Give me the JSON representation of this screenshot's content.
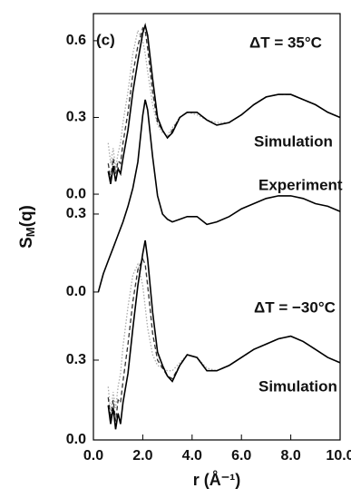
{
  "chart_data": [
    {
      "type": "line",
      "ylabel": {
        "main": "S",
        "sub": "M",
        "rest": "(q)"
      },
      "xlabel": "r (Å⁻¹)",
      "xlim": [
        0,
        10
      ],
      "xticks": [
        {
          "value": 0,
          "label": "0.0"
        },
        {
          "value": 2,
          "label": "2.0"
        },
        {
          "value": 4,
          "label": "4.0"
        },
        {
          "value": 6,
          "label": "6.0"
        },
        {
          "value": 8,
          "label": "8.0"
        },
        {
          "value": 10,
          "label": "10.0"
        }
      ],
      "ylim": [
        -0.961,
        0.706
      ],
      "yticks": [
        {
          "value": 0,
          "label": "0.0"
        },
        0.3,
        0.6
      ],
      "annotations": [
        "(c)",
        "ΔT = 35°C",
        "Simulation"
      ],
      "x": [
        0.6,
        0.7,
        0.8,
        0.9,
        1.0,
        1.1,
        1.2,
        1.4,
        1.6,
        1.8,
        2.0,
        2.1,
        2.2,
        2.4,
        2.6,
        2.8,
        3.0,
        3.2,
        3.5,
        3.8,
        4.2,
        4.6,
        5.0,
        5.5,
        6.0,
        6.5,
        7.0,
        7.5,
        8.0,
        8.5,
        9.0,
        9.5,
        10.0
      ],
      "series": [
        {
          "color": "#aaaaaa",
          "style": "dotted",
          "values": [
            0.2,
            0.12,
            0.18,
            0.1,
            0.16,
            0.2,
            0.28,
            0.4,
            0.55,
            0.64,
            0.6,
            0.55,
            0.48,
            0.35,
            0.27,
            0.24,
            0.23,
            0.26,
            0.3,
            0.32,
            0.31,
            0.29,
            0.28,
            0.28,
            0.31,
            0.35,
            0.38,
            0.39,
            0.39,
            0.37,
            0.35,
            0.32,
            0.3
          ]
        },
        {
          "color": "#333333",
          "style": "dashed",
          "values": [
            0.12,
            0.06,
            0.14,
            0.08,
            0.13,
            0.12,
            0.2,
            0.32,
            0.47,
            0.58,
            0.65,
            0.64,
            0.57,
            0.4,
            0.28,
            0.25,
            0.22,
            0.25,
            0.3,
            0.32,
            0.32,
            0.29,
            0.27,
            0.28,
            0.31,
            0.35,
            0.38,
            0.39,
            0.39,
            0.37,
            0.35,
            0.32,
            0.3
          ]
        },
        {
          "color": "#000000",
          "style": "solid",
          "values": [
            0.09,
            0.04,
            0.11,
            0.05,
            0.1,
            0.08,
            0.14,
            0.25,
            0.4,
            0.52,
            0.63,
            0.66,
            0.62,
            0.45,
            0.3,
            0.25,
            0.22,
            0.24,
            0.3,
            0.32,
            0.32,
            0.29,
            0.27,
            0.28,
            0.31,
            0.35,
            0.38,
            0.39,
            0.39,
            0.37,
            0.35,
            0.32,
            0.3
          ]
        }
      ]
    },
    {
      "type": "line",
      "ylim": [
        -0.569,
        1.071
      ],
      "yticks": [
        {
          "value": 0,
          "label": "0.0"
        },
        0.3
      ],
      "annotations": [
        "Experiment"
      ],
      "x": [
        0.2,
        0.4,
        0.6,
        0.8,
        1.0,
        1.2,
        1.4,
        1.6,
        1.8,
        2.0,
        2.1,
        2.2,
        2.4,
        2.6,
        2.8,
        3.0,
        3.2,
        3.5,
        3.8,
        4.2,
        4.6,
        5.0,
        5.5,
        6.0,
        6.5,
        7.0,
        7.5,
        8.0,
        8.5,
        9.0,
        9.5,
        10.0
      ],
      "series": [
        {
          "color": "#000000",
          "style": "solid",
          "values": [
            0.0,
            0.07,
            0.12,
            0.17,
            0.22,
            0.27,
            0.33,
            0.4,
            0.5,
            0.68,
            0.74,
            0.7,
            0.52,
            0.37,
            0.3,
            0.28,
            0.27,
            0.28,
            0.29,
            0.29,
            0.26,
            0.27,
            0.29,
            0.32,
            0.34,
            0.36,
            0.37,
            0.37,
            0.36,
            0.34,
            0.33,
            0.31
          ]
        }
      ]
    },
    {
      "type": "line",
      "ylim": [
        0,
        1.602
      ],
      "yticks": [
        {
          "value": 0,
          "label": "0.0"
        },
        0.3
      ],
      "annotations": [
        "ΔT = −30°C",
        "Simulation"
      ],
      "x": [
        0.6,
        0.7,
        0.8,
        0.9,
        1.0,
        1.1,
        1.2,
        1.4,
        1.6,
        1.8,
        2.0,
        2.1,
        2.2,
        2.4,
        2.6,
        2.8,
        3.0,
        3.2,
        3.5,
        3.8,
        4.2,
        4.6,
        5.0,
        5.5,
        6.0,
        6.5,
        7.0,
        7.5,
        8.0,
        8.5,
        9.0,
        9.5,
        10.0
      ],
      "series": [
        {
          "color": "#aaaaaa",
          "style": "dotted",
          "values": [
            0.2,
            0.1,
            0.18,
            0.12,
            0.2,
            0.25,
            0.35,
            0.5,
            0.62,
            0.66,
            0.58,
            0.5,
            0.42,
            0.32,
            0.28,
            0.27,
            0.26,
            0.26,
            0.29,
            0.32,
            0.31,
            0.27,
            0.26,
            0.28,
            0.31,
            0.34,
            0.36,
            0.38,
            0.39,
            0.37,
            0.34,
            0.31,
            0.29
          ]
        },
        {
          "color": "#333333",
          "style": "dashed",
          "values": [
            0.16,
            0.08,
            0.15,
            0.07,
            0.15,
            0.14,
            0.22,
            0.36,
            0.52,
            0.64,
            0.68,
            0.66,
            0.58,
            0.4,
            0.3,
            0.27,
            0.24,
            0.23,
            0.28,
            0.32,
            0.31,
            0.26,
            0.26,
            0.28,
            0.31,
            0.34,
            0.36,
            0.38,
            0.39,
            0.37,
            0.34,
            0.31,
            0.29
          ]
        },
        {
          "color": "#000000",
          "style": "solid",
          "values": [
            0.13,
            0.06,
            0.12,
            0.04,
            0.1,
            0.06,
            0.14,
            0.25,
            0.42,
            0.58,
            0.7,
            0.75,
            0.68,
            0.48,
            0.33,
            0.28,
            0.24,
            0.22,
            0.28,
            0.32,
            0.31,
            0.26,
            0.26,
            0.28,
            0.31,
            0.34,
            0.36,
            0.38,
            0.39,
            0.37,
            0.34,
            0.31,
            0.29
          ]
        }
      ]
    }
  ]
}
